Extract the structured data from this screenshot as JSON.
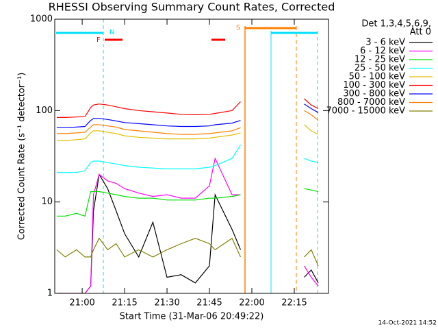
{
  "chart_data": {
    "type": "line",
    "title": "RHESSI Observing Summary Count Rates, Corrected",
    "x_label": "Start Time (31-Mar-06 20:49:22)",
    "y_label": "Corrected Count Rate (s⁻¹ detector⁻¹)",
    "legend_header": [
      "Det 1,3,4,5,6,9,",
      "Att 0"
    ],
    "flags": [
      "N",
      "F",
      "S"
    ],
    "footer": "14-Oct-2021 14:52",
    "log_y": true,
    "xlim": [
      1250.3,
      1347.1
    ],
    "ylim": [
      1,
      1000
    ],
    "xticks": [
      {
        "value": 1260,
        "label": "21:00"
      },
      {
        "value": 1275,
        "label": "21:15"
      },
      {
        "value": 1290,
        "label": "21:30"
      },
      {
        "value": 1305,
        "label": "21:45"
      },
      {
        "value": 1320,
        "label": "22:00"
      },
      {
        "value": 1335,
        "label": "22:15"
      }
    ],
    "yticks": [
      1,
      10,
      100,
      1000
    ],
    "x": [
      1251,
      1254,
      1258,
      1261,
      1263,
      1264,
      1266,
      1269,
      1272,
      1275,
      1280,
      1285,
      1290,
      1295,
      1300,
      1305,
      1307,
      1313,
      1316,
      1328,
      1338.5,
      1341,
      1343.5
    ],
    "series": [
      {
        "name": "3 - 6 keV",
        "color": "#000000",
        "values": [
          1,
          1,
          1,
          1,
          1.2,
          8,
          20,
          14,
          8,
          4.5,
          2.5,
          6,
          1.5,
          1.6,
          1.3,
          2,
          12,
          5,
          3,
          null,
          1.5,
          1.8,
          1.3
        ]
      },
      {
        "name": "6 - 12 keV",
        "color": "#ff00ff",
        "values": [
          1,
          1,
          1,
          1,
          1.2,
          12,
          20,
          17,
          16,
          14,
          12.5,
          11.5,
          12,
          11,
          11,
          15,
          30,
          12,
          12,
          null,
          2,
          1.5,
          1.2
        ]
      },
      {
        "name": "12 - 25 keV",
        "color": "#00e000",
        "values": [
          7,
          7,
          7.5,
          7,
          13,
          13,
          13,
          12.5,
          12,
          11.5,
          11,
          11,
          10.5,
          10.5,
          10.5,
          11,
          11,
          11.5,
          12,
          null,
          14,
          13.5,
          13
        ]
      },
      {
        "name": "25 - 50 keV",
        "color": "#00ffff",
        "values": [
          21,
          21,
          21,
          22,
          27,
          28,
          28,
          27,
          26,
          25,
          24,
          23.5,
          23,
          23,
          23,
          24,
          25,
          30,
          42,
          null,
          30,
          28,
          27
        ]
      },
      {
        "name": "50 - 100 keV",
        "color": "#e0c000",
        "values": [
          47,
          47,
          48,
          49,
          57,
          60,
          60,
          58,
          56,
          53,
          51,
          50,
          49,
          49,
          49,
          50,
          51,
          54,
          57,
          null,
          70,
          60,
          55
        ]
      },
      {
        "name": "100 - 300 keV",
        "color": "#ff0000",
        "values": [
          84,
          84,
          85,
          86,
          108,
          115,
          118,
          115,
          110,
          105,
          100,
          97,
          94,
          91,
          90,
          91,
          93,
          100,
          125,
          null,
          135,
          115,
          105
        ]
      },
      {
        "name": "300 - 800 keV",
        "color": "#0000ff",
        "values": [
          65,
          65,
          66,
          67,
          78,
          82,
          82,
          80,
          77,
          74,
          72,
          70,
          68,
          67,
          67,
          68,
          70,
          73,
          78,
          null,
          118,
          105,
          95
        ]
      },
      {
        "name": "800 - 7000 keV",
        "color": "#ff8000",
        "values": [
          56,
          56,
          57,
          58,
          66,
          70,
          70,
          68,
          66,
          62,
          60,
          58,
          56,
          55,
          55,
          56,
          57,
          60,
          65,
          null,
          100,
          90,
          78
        ]
      },
      {
        "name": "7000 - 15000 keV",
        "color": "#808000",
        "values": [
          3,
          2.5,
          3,
          2.5,
          2.5,
          3,
          4,
          3,
          3.5,
          2.5,
          3,
          2.5,
          3,
          3.5,
          4,
          3.5,
          3,
          4,
          2.5,
          null,
          2.5,
          3,
          2
        ]
      }
    ]
  }
}
